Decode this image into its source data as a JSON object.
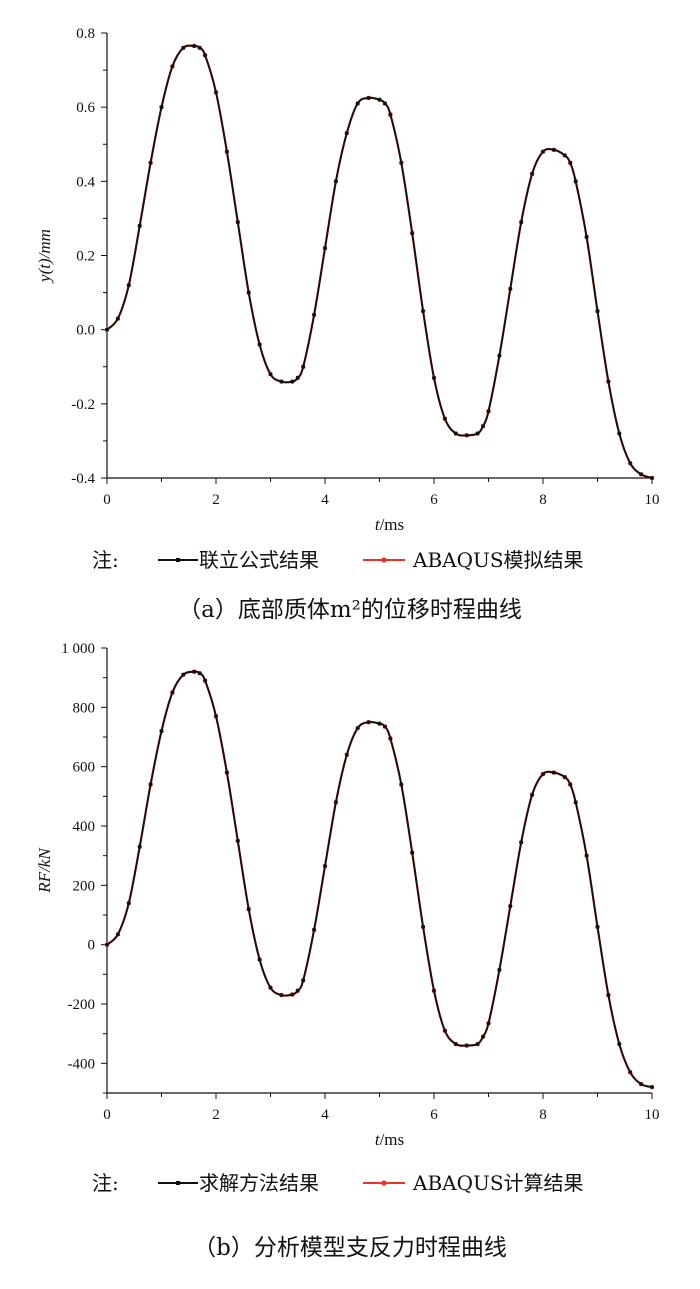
{
  "chart_data": [
    {
      "type": "line",
      "caption": "（a）底部质体m²的位移时程曲线",
      "xlabel_italic": "t",
      "xlabel_rest": "/ms",
      "ylabel": "y(t)/mm",
      "xlim": [
        0,
        10
      ],
      "ylim": [
        -0.4,
        0.8
      ],
      "x_ticks": [
        "0",
        "2",
        "4",
        "6",
        "8",
        "10"
      ],
      "y_ticks": [
        "-0.4",
        "-0.2",
        "0.0",
        "0.2",
        "0.4",
        "0.6",
        "0.8"
      ],
      "grid": false,
      "legend_prefix": "注:",
      "legend_position": "bottom",
      "series": [
        {
          "name": "联立公式结果",
          "color": "#111111",
          "x": [
            0,
            0.2,
            0.4,
            0.6,
            0.8,
            1.0,
            1.2,
            1.4,
            1.6,
            1.7,
            1.8,
            2.0,
            2.2,
            2.4,
            2.6,
            2.8,
            3.0,
            3.2,
            3.4,
            3.5,
            3.6,
            3.8,
            4.0,
            4.2,
            4.4,
            4.6,
            4.8,
            5.0,
            5.1,
            5.2,
            5.4,
            5.6,
            5.8,
            6.0,
            6.2,
            6.4,
            6.6,
            6.8,
            6.9,
            7.0,
            7.2,
            7.4,
            7.6,
            7.8,
            8.0,
            8.2,
            8.4,
            8.5,
            8.6,
            8.8,
            9.0,
            9.2,
            9.4,
            9.6,
            9.8,
            10.0
          ],
          "y": [
            0.0,
            0.03,
            0.12,
            0.28,
            0.45,
            0.6,
            0.71,
            0.76,
            0.765,
            0.76,
            0.74,
            0.64,
            0.48,
            0.29,
            0.1,
            -0.04,
            -0.12,
            -0.14,
            -0.14,
            -0.13,
            -0.1,
            0.04,
            0.22,
            0.4,
            0.53,
            0.61,
            0.625,
            0.62,
            0.61,
            0.58,
            0.45,
            0.26,
            0.05,
            -0.13,
            -0.24,
            -0.28,
            -0.285,
            -0.28,
            -0.26,
            -0.22,
            -0.07,
            0.11,
            0.29,
            0.42,
            0.48,
            0.485,
            0.47,
            0.45,
            0.4,
            0.25,
            0.05,
            -0.14,
            -0.28,
            -0.36,
            -0.39,
            -0.4
          ]
        },
        {
          "name": "ABAQUS模拟结果",
          "color": "#e8332b",
          "x": [
            0,
            0.2,
            0.4,
            0.6,
            0.8,
            1.0,
            1.2,
            1.4,
            1.6,
            1.7,
            1.8,
            2.0,
            2.2,
            2.4,
            2.6,
            2.8,
            3.0,
            3.2,
            3.4,
            3.5,
            3.6,
            3.8,
            4.0,
            4.2,
            4.4,
            4.6,
            4.8,
            5.0,
            5.1,
            5.2,
            5.4,
            5.6,
            5.8,
            6.0,
            6.2,
            6.4,
            6.6,
            6.8,
            6.9,
            7.0,
            7.2,
            7.4,
            7.6,
            7.8,
            8.0,
            8.2,
            8.4,
            8.5,
            8.6,
            8.8,
            9.0,
            9.2,
            9.4,
            9.6,
            9.8,
            10.0
          ],
          "y": [
            0.0,
            0.03,
            0.12,
            0.28,
            0.45,
            0.6,
            0.71,
            0.76,
            0.765,
            0.76,
            0.74,
            0.64,
            0.48,
            0.29,
            0.1,
            -0.04,
            -0.12,
            -0.14,
            -0.14,
            -0.13,
            -0.1,
            0.04,
            0.22,
            0.4,
            0.53,
            0.61,
            0.625,
            0.62,
            0.61,
            0.58,
            0.45,
            0.26,
            0.05,
            -0.13,
            -0.24,
            -0.28,
            -0.285,
            -0.28,
            -0.26,
            -0.22,
            -0.07,
            0.11,
            0.29,
            0.42,
            0.48,
            0.485,
            0.47,
            0.45,
            0.4,
            0.25,
            0.05,
            -0.14,
            -0.28,
            -0.36,
            -0.39,
            -0.4
          ]
        }
      ]
    },
    {
      "type": "line",
      "caption": "（b）分析模型支反力时程曲线",
      "xlabel_italic": "t",
      "xlabel_rest": "/ms",
      "ylabel": "RF/kN",
      "xlim": [
        0,
        10
      ],
      "ylim": [
        -500,
        1000
      ],
      "x_ticks": [
        "0",
        "2",
        "4",
        "6",
        "8",
        "10"
      ],
      "y_ticks": [
        "-400",
        "-200",
        "0",
        "200",
        "400",
        "600",
        "800",
        "1 000"
      ],
      "grid": false,
      "legend_prefix": "注:",
      "legend_position": "bottom",
      "series": [
        {
          "name": "求解方法结果",
          "color": "#111111",
          "x": [
            0,
            0.2,
            0.4,
            0.6,
            0.8,
            1.0,
            1.2,
            1.4,
            1.6,
            1.7,
            1.8,
            2.0,
            2.2,
            2.4,
            2.6,
            2.8,
            3.0,
            3.2,
            3.4,
            3.5,
            3.6,
            3.8,
            4.0,
            4.2,
            4.4,
            4.6,
            4.8,
            5.0,
            5.1,
            5.2,
            5.4,
            5.6,
            5.8,
            6.0,
            6.2,
            6.4,
            6.6,
            6.8,
            6.9,
            7.0,
            7.2,
            7.4,
            7.6,
            7.8,
            8.0,
            8.2,
            8.4,
            8.5,
            8.6,
            8.8,
            9.0,
            9.2,
            9.4,
            9.6,
            9.8,
            10.0
          ],
          "y": [
            0,
            35,
            140,
            330,
            540,
            720,
            850,
            910,
            920,
            915,
            890,
            770,
            580,
            350,
            120,
            -50,
            -145,
            -170,
            -168,
            -155,
            -120,
            50,
            265,
            480,
            640,
            730,
            750,
            745,
            735,
            695,
            540,
            310,
            60,
            -155,
            -290,
            -335,
            -340,
            -335,
            -310,
            -265,
            -85,
            130,
            345,
            505,
            575,
            580,
            565,
            540,
            480,
            300,
            60,
            -170,
            -335,
            -430,
            -470,
            -480
          ]
        },
        {
          "name": "ABAQUS计算结果",
          "color": "#e8332b",
          "x": [
            0,
            0.2,
            0.4,
            0.6,
            0.8,
            1.0,
            1.2,
            1.4,
            1.6,
            1.7,
            1.8,
            2.0,
            2.2,
            2.4,
            2.6,
            2.8,
            3.0,
            3.2,
            3.4,
            3.5,
            3.6,
            3.8,
            4.0,
            4.2,
            4.4,
            4.6,
            4.8,
            5.0,
            5.1,
            5.2,
            5.4,
            5.6,
            5.8,
            6.0,
            6.2,
            6.4,
            6.6,
            6.8,
            6.9,
            7.0,
            7.2,
            7.4,
            7.6,
            7.8,
            8.0,
            8.2,
            8.4,
            8.5,
            8.6,
            8.8,
            9.0,
            9.2,
            9.4,
            9.6,
            9.8,
            10.0
          ],
          "y": [
            0,
            35,
            140,
            330,
            540,
            720,
            850,
            910,
            920,
            915,
            890,
            770,
            580,
            350,
            120,
            -50,
            -145,
            -170,
            -168,
            -155,
            -120,
            50,
            265,
            480,
            640,
            730,
            750,
            745,
            735,
            695,
            540,
            310,
            60,
            -155,
            -290,
            -335,
            -340,
            -335,
            -310,
            -265,
            -85,
            130,
            345,
            505,
            575,
            580,
            565,
            540,
            480,
            300,
            60,
            -170,
            -335,
            -430,
            -470,
            -480
          ]
        }
      ]
    }
  ]
}
